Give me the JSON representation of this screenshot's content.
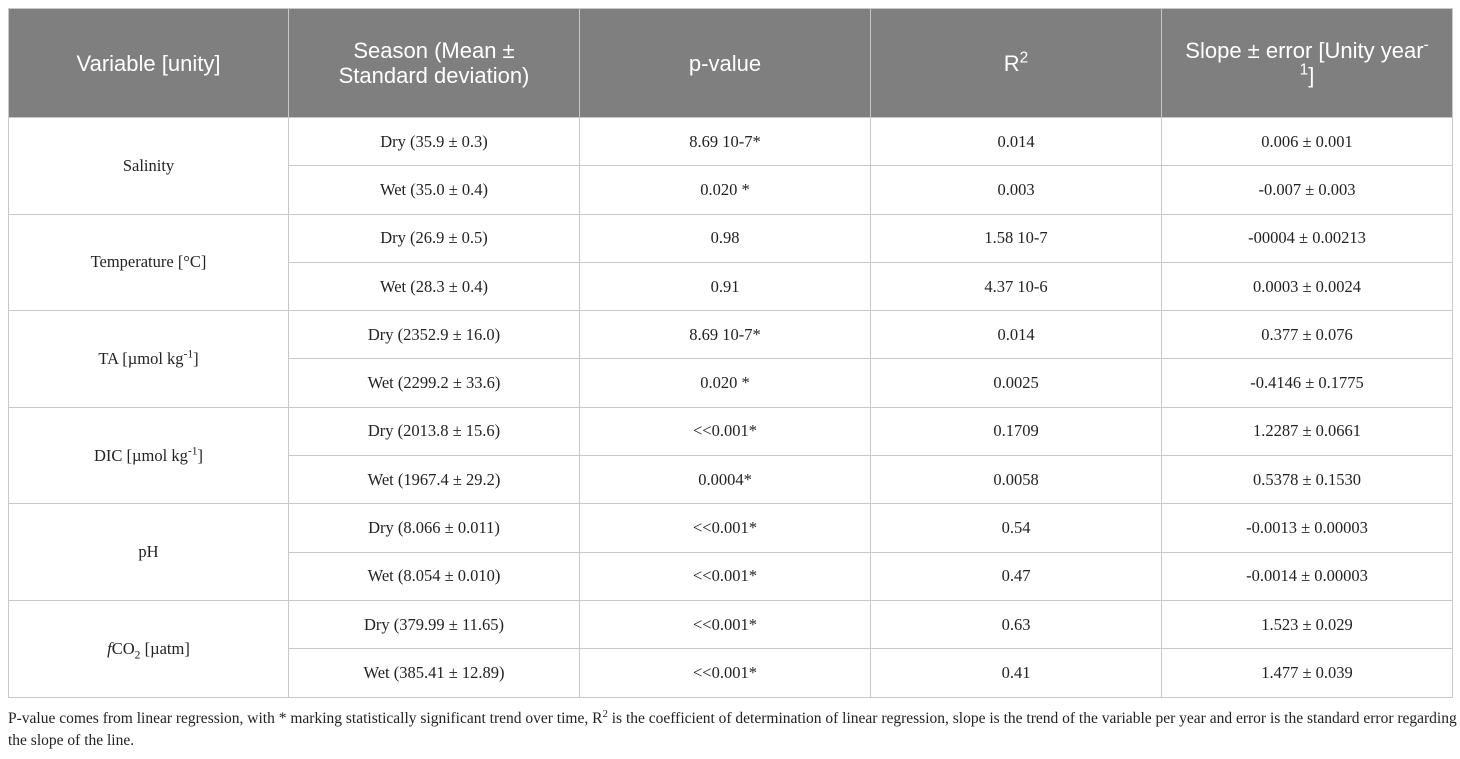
{
  "table": {
    "header": [
      "Variable [unity]",
      "Season (Mean ± Standard deviation)",
      "p-value",
      [
        "R",
        {
          "sup": "2"
        }
      ],
      [
        "Slope ± error [Unity year",
        {
          "sup": "-1"
        },
        "]"
      ]
    ],
    "groups": [
      {
        "variable": "Salinity",
        "rows": [
          [
            "Dry (35.9 ± 0.3)",
            "8.69 10-7*",
            "0.014",
            "0.006 ± 0.001"
          ],
          [
            "Wet (35.0 ± 0.4)",
            "0.020 *",
            "0.003",
            "-0.007 ± 0.003"
          ]
        ]
      },
      {
        "variable": "Temperature [°C]",
        "rows": [
          [
            "Dry (26.9 ± 0.5)",
            "0.98",
            "1.58 10-7",
            "-00004 ± 0.00213"
          ],
          [
            "Wet (28.3 ± 0.4)",
            "0.91",
            "4.37 10-6",
            "0.0003 ± 0.0024"
          ]
        ]
      },
      {
        "variable": [
          "TA [µmol kg",
          {
            "sup": "-1"
          },
          "]"
        ],
        "rows": [
          [
            "Dry (2352.9 ± 16.0)",
            "8.69 10-7*",
            "0.014",
            "0.377 ± 0.076"
          ],
          [
            "Wet (2299.2 ± 33.6)",
            "0.020 *",
            "0.0025",
            "-0.4146 ± 0.1775"
          ]
        ]
      },
      {
        "variable": [
          "DIC [µmol kg",
          {
            "sup": "-1"
          },
          "]"
        ],
        "rows": [
          [
            "Dry (2013.8 ± 15.6)",
            "<<0.001*",
            "0.1709",
            "1.2287 ± 0.0661"
          ],
          [
            "Wet (1967.4 ± 29.2)",
            "0.0004*",
            "0.0058",
            "0.5378 ± 0.1530"
          ]
        ]
      },
      {
        "variable": "pH",
        "rows": [
          [
            "Dry (8.066 ± 0.011)",
            "<<0.001*",
            "0.54",
            "-0.0013 ± 0.00003"
          ],
          [
            "Wet (8.054 ± 0.010)",
            "<<0.001*",
            "0.47",
            "-0.0014 ± 0.00003"
          ]
        ]
      },
      {
        "variable": [
          {
            "i": "f"
          },
          "CO",
          {
            "sub": "2"
          },
          " [µatm]"
        ],
        "rows": [
          [
            "Dry (379.99 ± 11.65)",
            "<<0.001*",
            "0.63",
            "1.523 ± 0.029"
          ],
          [
            "Wet (385.41 ± 12.89)",
            "<<0.001*",
            "0.41",
            "1.477 ± 0.039"
          ]
        ]
      }
    ],
    "footnote": [
      "P-value comes from linear regression, with * marking statistically significant trend over time, R",
      {
        "sup": "2"
      },
      " is the coefficient of determination of linear regression, slope is the trend of the variable per year and error is the standard error regarding the slope of the line."
    ]
  }
}
